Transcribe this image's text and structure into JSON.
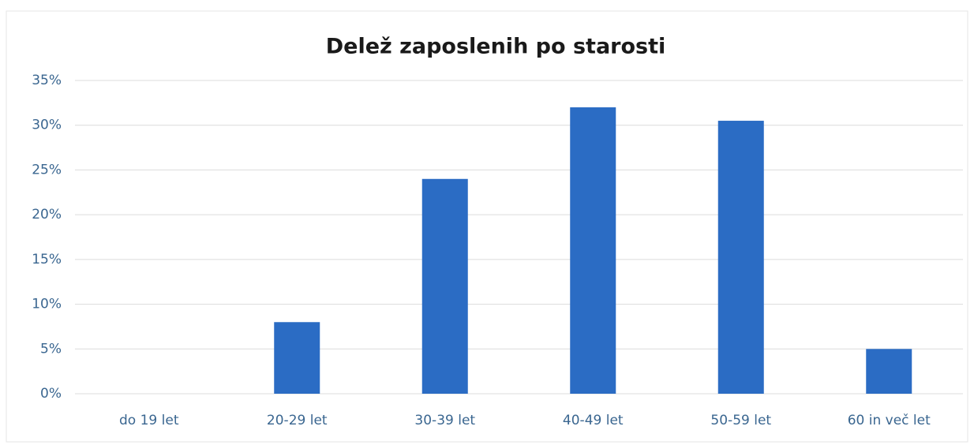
{
  "chart_data": {
    "type": "bar",
    "title": "Delež zaposlenih po starosti",
    "categories": [
      "do 19 let",
      "20-29 let",
      "30-39 let",
      "40-49 let",
      "50-59 let",
      "60 in več let"
    ],
    "values": [
      0,
      8,
      24,
      32,
      30.5,
      5
    ],
    "color": "#2b6cc4",
    "ylim": [
      0,
      35
    ],
    "yticks": [
      {
        "value": 0,
        "label": "0%"
      },
      {
        "value": 5,
        "label": "5%"
      },
      {
        "value": 10,
        "label": "10%"
      },
      {
        "value": 15,
        "label": "15%"
      },
      {
        "value": 20,
        "label": "20%"
      },
      {
        "value": 25,
        "label": "25%"
      },
      {
        "value": 30,
        "label": "30%"
      },
      {
        "value": 35,
        "label": "35%"
      }
    ],
    "grid": true
  }
}
